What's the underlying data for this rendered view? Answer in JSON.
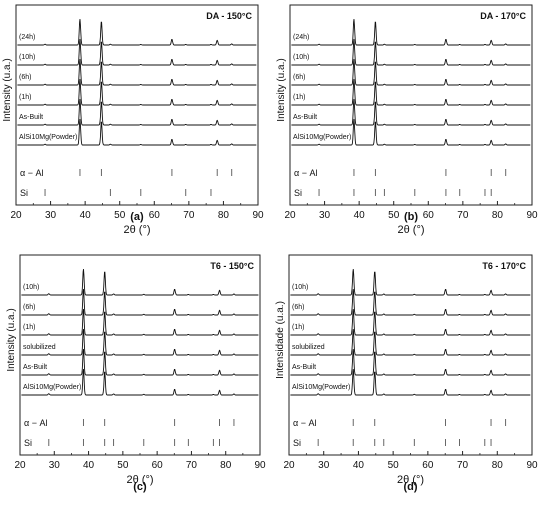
{
  "chart_data": [
    {
      "type": "line",
      "title": "DA - 150°C",
      "caption": "(a)",
      "xlabel": "2θ (°)",
      "ylabel": "Intensity (u.a.)",
      "xlim": [
        20,
        90
      ],
      "xticks": [
        20,
        30,
        40,
        50,
        60,
        70,
        80,
        90
      ],
      "grid": false,
      "series": [
        {
          "name": "(24h)"
        },
        {
          "name": "(10h)"
        },
        {
          "name": "(6h)"
        },
        {
          "name": "(1h)"
        },
        {
          "name": "As-Built"
        },
        {
          "name": "AlSi10Mg(Powder)"
        }
      ],
      "peaks_2theta": [
        28.4,
        38.5,
        44.7,
        47.3,
        56.1,
        65.1,
        69.1,
        76.4,
        78.2,
        82.4
      ],
      "peak_rel_heights": [
        0.03,
        1.0,
        0.92,
        0.03,
        0.02,
        0.22,
        0.02,
        0.02,
        0.18,
        0.04
      ],
      "reference": [
        {
          "name": "α − Al",
          "positions": [
            38.5,
            44.7,
            65.1,
            78.2,
            82.4
          ]
        },
        {
          "name": "Si",
          "positions": [
            28.4,
            47.3,
            56.1,
            69.1,
            76.4
          ]
        }
      ]
    },
    {
      "type": "line",
      "title": "DA - 170°C",
      "caption": "(b)",
      "xlabel": "2θ (°)",
      "ylabel": "Intensity (u.a.)",
      "xlim": [
        20,
        90
      ],
      "xticks": [
        20,
        30,
        40,
        50,
        60,
        70,
        80,
        90
      ],
      "grid": false,
      "series": [
        {
          "name": "(24h)"
        },
        {
          "name": "(10h)"
        },
        {
          "name": "(6h)"
        },
        {
          "name": "(1h)"
        },
        {
          "name": "As-Built"
        },
        {
          "name": "AlSi10Mg(Powder)"
        }
      ],
      "peaks_2theta": [
        28.4,
        38.5,
        44.7,
        47.3,
        56.1,
        65.1,
        69.1,
        76.4,
        78.2,
        82.4
      ],
      "peak_rel_heights": [
        0.03,
        1.0,
        0.92,
        0.03,
        0.02,
        0.22,
        0.02,
        0.02,
        0.18,
        0.04
      ],
      "reference": [
        {
          "name": "α − Al",
          "positions": [
            38.5,
            44.7,
            65.1,
            78.2,
            82.4
          ]
        },
        {
          "name": "Si",
          "positions": [
            28.4,
            38.5,
            44.7,
            47.3,
            56.1,
            65.1,
            69.1,
            76.4,
            78.2
          ]
        }
      ]
    },
    {
      "type": "line",
      "title": "T6 - 150°C",
      "caption": "(c)",
      "xlabel": "2θ (°)",
      "ylabel": "Intensity (u.a.)",
      "xlim": [
        20,
        90
      ],
      "xticks": [
        20,
        30,
        40,
        50,
        60,
        70,
        80,
        90
      ],
      "grid": false,
      "series": [
        {
          "name": "(10h)"
        },
        {
          "name": "(6h)"
        },
        {
          "name": "(1h)"
        },
        {
          "name": "solubilized"
        },
        {
          "name": "As-Built"
        },
        {
          "name": "AlSi10Mg(Powder)"
        }
      ],
      "peaks_2theta": [
        28.4,
        38.5,
        44.7,
        47.3,
        56.1,
        65.1,
        69.1,
        76.4,
        78.2,
        82.4
      ],
      "peak_rel_heights": [
        0.05,
        1.0,
        0.92,
        0.04,
        0.03,
        0.22,
        0.02,
        0.02,
        0.18,
        0.04
      ],
      "reference": [
        {
          "name": "α − Al",
          "positions": [
            38.5,
            44.7,
            65.1,
            78.2,
            82.4
          ]
        },
        {
          "name": "Si",
          "positions": [
            28.4,
            38.5,
            44.7,
            47.3,
            56.1,
            65.1,
            69.1,
            76.4,
            78.2
          ]
        }
      ]
    },
    {
      "type": "line",
      "title": "T6 - 170°C",
      "caption": "(d)",
      "xlabel": "2θ (°)",
      "ylabel": "Intensidade (u.a.)",
      "xlim": [
        20,
        90
      ],
      "xticks": [
        20,
        30,
        40,
        50,
        60,
        70,
        80,
        90
      ],
      "grid": false,
      "series": [
        {
          "name": "(10h)"
        },
        {
          "name": "(6h)"
        },
        {
          "name": "(1h)"
        },
        {
          "name": "solubilized"
        },
        {
          "name": "As-Built"
        },
        {
          "name": "AlSi10Mg(Powder)"
        }
      ],
      "peaks_2theta": [
        28.4,
        38.5,
        44.7,
        47.3,
        56.1,
        65.1,
        69.1,
        76.4,
        78.2,
        82.4
      ],
      "peak_rel_heights": [
        0.05,
        1.0,
        0.92,
        0.04,
        0.03,
        0.22,
        0.02,
        0.02,
        0.18,
        0.04
      ],
      "reference": [
        {
          "name": "α − Al",
          "positions": [
            38.5,
            44.7,
            65.1,
            78.2,
            82.4
          ]
        },
        {
          "name": "Si",
          "positions": [
            28.4,
            38.5,
            44.7,
            47.3,
            56.1,
            65.1,
            69.1,
            76.4,
            78.2
          ]
        }
      ]
    }
  ]
}
